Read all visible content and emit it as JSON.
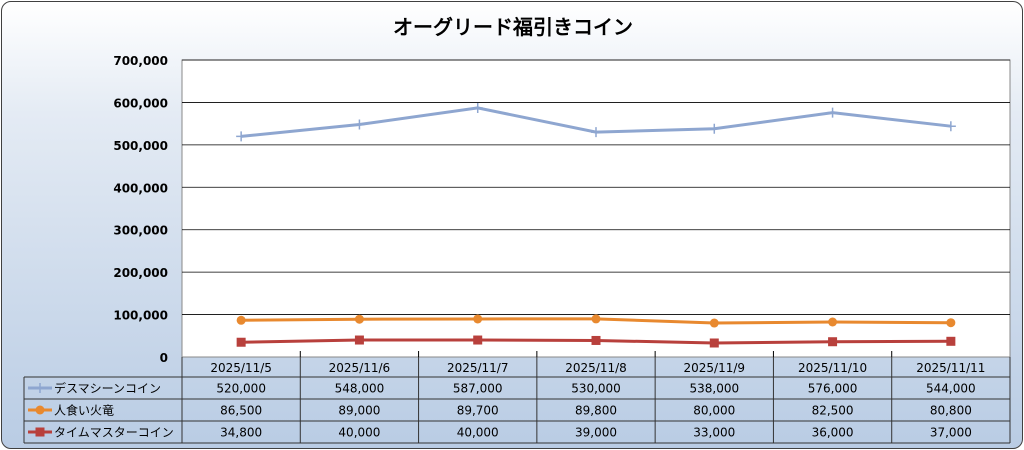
{
  "chart_data": {
    "type": "line",
    "title": "オーグリード福引きコイン",
    "categories": [
      "2025/11/5",
      "2025/11/6",
      "2025/11/7",
      "2025/11/8",
      "2025/11/9",
      "2025/11/10",
      "2025/11/11"
    ],
    "ylim": [
      0,
      700000
    ],
    "yticks": [
      "0",
      "100,000",
      "200,000",
      "300,000",
      "400,000",
      "500,000",
      "600,000",
      "700,000"
    ],
    "grid": true,
    "legend": "data-table",
    "series": [
      {
        "name": "デスマシーンコイン",
        "color": "#8ea6d0",
        "marker": "plus",
        "values": [
          520000,
          548000,
          587000,
          530000,
          538000,
          576000,
          544000
        ],
        "labels": [
          "520,000",
          "548,000",
          "587,000",
          "530,000",
          "538,000",
          "576,000",
          "544,000"
        ]
      },
      {
        "name": "人食い火竜",
        "color": "#e8892f",
        "marker": "circle",
        "values": [
          86500,
          89000,
          89700,
          89800,
          80000,
          82500,
          80800
        ],
        "labels": [
          "86,500",
          "89,000",
          "89,700",
          "89,800",
          "80,000",
          "82,500",
          "80,800"
        ]
      },
      {
        "name": "タイムマスターコイン",
        "color": "#b8403c",
        "marker": "square",
        "values": [
          34800,
          40000,
          40000,
          39000,
          33000,
          36000,
          37000
        ],
        "labels": [
          "34,800",
          "40,000",
          "40,000",
          "39,000",
          "33,000",
          "36,000",
          "37,000"
        ]
      }
    ]
  }
}
